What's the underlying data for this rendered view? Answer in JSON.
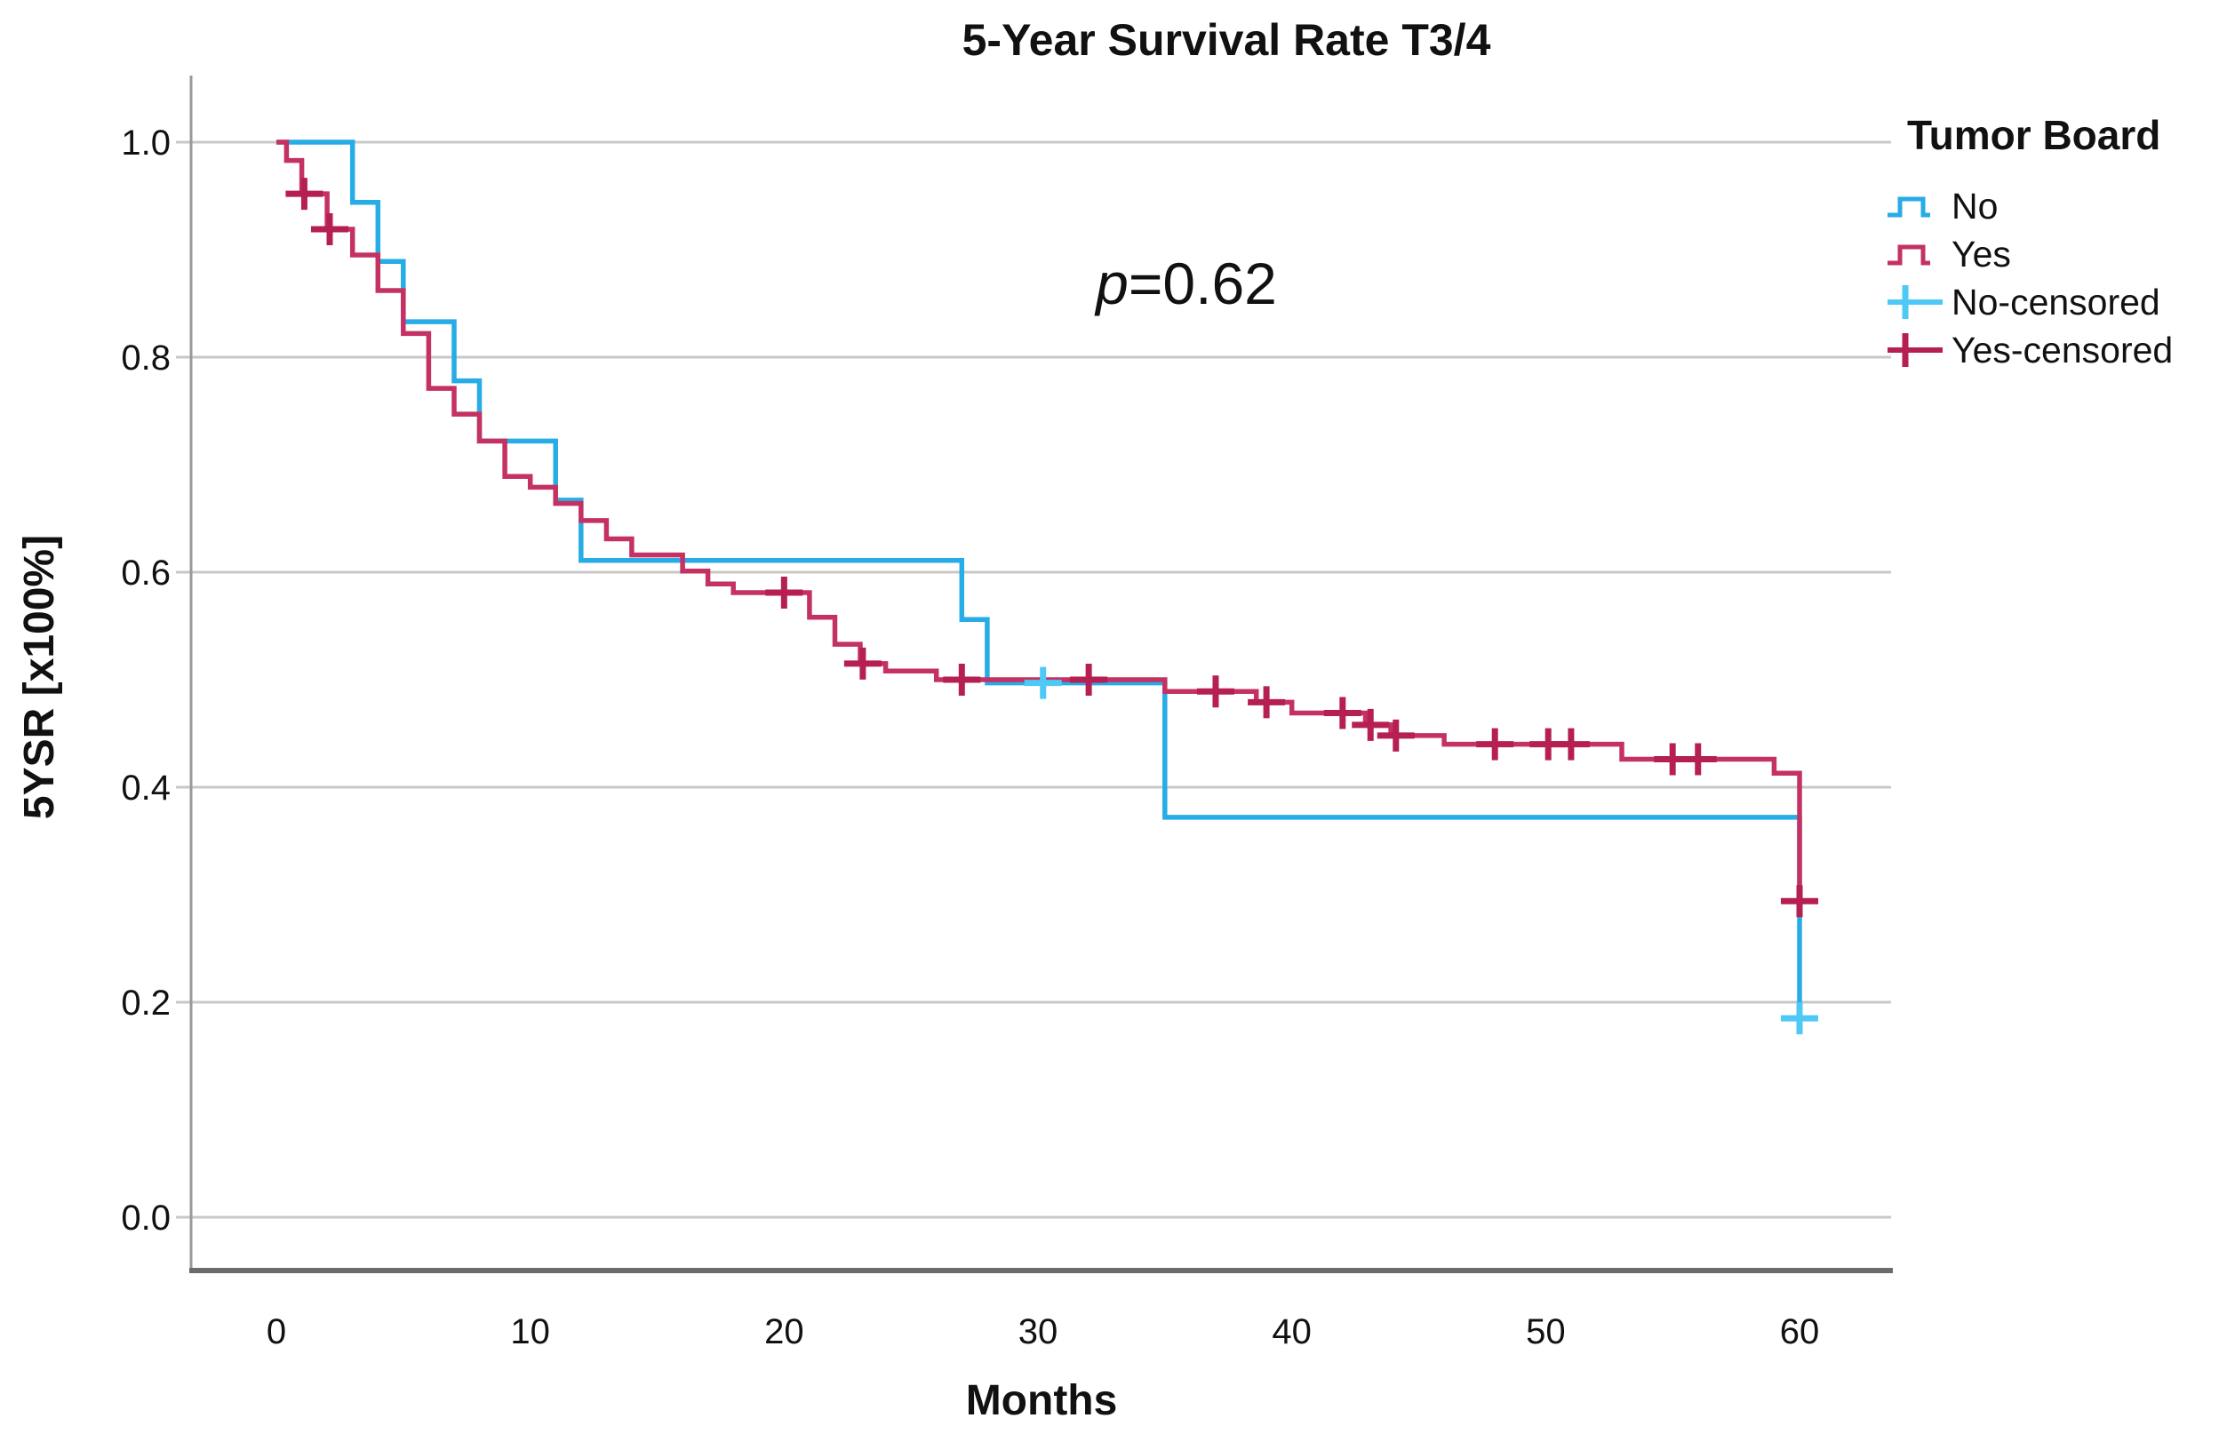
{
  "title": "5-Year Survival Rate T3/4",
  "annotation": {
    "p_symbol": "p",
    "p_rest": "=0.62",
    "full_text": "p=0.62"
  },
  "x_axis": {
    "label": "Months",
    "ticks": [
      0,
      10,
      20,
      30,
      40,
      50,
      60
    ]
  },
  "y_axis": {
    "label": "5YSR [x100%]",
    "tick_labels": [
      "1.0",
      "0.8",
      "0.6",
      "0.4",
      "0.2",
      "0.0"
    ],
    "tick_values": [
      1.0,
      0.8,
      0.6,
      0.4,
      0.2,
      0.0
    ]
  },
  "legend": {
    "title": "Tumor Board",
    "items": [
      {
        "label": "No",
        "kind": "step",
        "series": "No"
      },
      {
        "label": "Yes",
        "kind": "step",
        "series": "Yes"
      },
      {
        "label": "No-censored",
        "kind": "cross",
        "series": "No"
      },
      {
        "label": "Yes-censored",
        "kind": "cross",
        "series": "Yes"
      }
    ]
  },
  "colors": {
    "no_line": "#27ACE6",
    "no_censor": "#4EC9F6",
    "yes_line": "#C43263",
    "yes_censor": "#B51F52",
    "gridline": "#C8C8C8",
    "y_axis_line": "#9A9A9A",
    "x_axis_line": "#6B6B6B",
    "text": "#111111"
  },
  "chart_data": {
    "type": "line",
    "subtype": "kaplan-meier-step",
    "title": "5-Year Survival Rate T3/4",
    "xlabel": "Months",
    "ylabel": "5YSR [x100%]",
    "xlim": [
      0,
      63.5
    ],
    "ylim": [
      -0.05,
      1.08
    ],
    "grid": true,
    "legend_position": "right",
    "series": [
      {
        "name": "No",
        "steps": [
          [
            0,
            1.0
          ],
          [
            3,
            0.944
          ],
          [
            4,
            0.889
          ],
          [
            5,
            0.833
          ],
          [
            7,
            0.778
          ],
          [
            8,
            0.722
          ],
          [
            11,
            0.667
          ],
          [
            12,
            0.611
          ],
          [
            27,
            0.556
          ],
          [
            28,
            0.497
          ],
          [
            35,
            0.372
          ],
          [
            60,
            0.178
          ]
        ],
        "censored": [
          [
            30.2,
            0.497
          ],
          [
            60,
            0.185
          ]
        ]
      },
      {
        "name": "Yes",
        "steps": [
          [
            0,
            1.0
          ],
          [
            0.4,
            0.983
          ],
          [
            1,
            0.952
          ],
          [
            2,
            0.919
          ],
          [
            3,
            0.895
          ],
          [
            4,
            0.862
          ],
          [
            5,
            0.822
          ],
          [
            6,
            0.771
          ],
          [
            7,
            0.747
          ],
          [
            8,
            0.722
          ],
          [
            9,
            0.689
          ],
          [
            10,
            0.679
          ],
          [
            11,
            0.664
          ],
          [
            12,
            0.648
          ],
          [
            13,
            0.631
          ],
          [
            14,
            0.616
          ],
          [
            16,
            0.601
          ],
          [
            17,
            0.589
          ],
          [
            18,
            0.581
          ],
          [
            21,
            0.558
          ],
          [
            22,
            0.533
          ],
          [
            23,
            0.515
          ],
          [
            24,
            0.508
          ],
          [
            26,
            0.5
          ],
          [
            35,
            0.489
          ],
          [
            38.6,
            0.479
          ],
          [
            40,
            0.469
          ],
          [
            42.9,
            0.458
          ],
          [
            43.9,
            0.448
          ],
          [
            46,
            0.44
          ],
          [
            53,
            0.426
          ],
          [
            59,
            0.413
          ],
          [
            60,
            0.283
          ]
        ],
        "censored": [
          [
            1.1,
            0.952
          ],
          [
            2.1,
            0.919
          ],
          [
            20,
            0.581
          ],
          [
            23.1,
            0.515
          ],
          [
            27,
            0.5
          ],
          [
            32,
            0.5
          ],
          [
            37,
            0.489
          ],
          [
            39,
            0.479
          ],
          [
            42,
            0.469
          ],
          [
            43.1,
            0.458
          ],
          [
            44.1,
            0.448
          ],
          [
            48,
            0.44
          ],
          [
            50.1,
            0.44
          ],
          [
            51,
            0.44
          ],
          [
            55,
            0.426
          ],
          [
            56,
            0.426
          ],
          [
            60,
            0.294
          ]
        ]
      }
    ]
  }
}
